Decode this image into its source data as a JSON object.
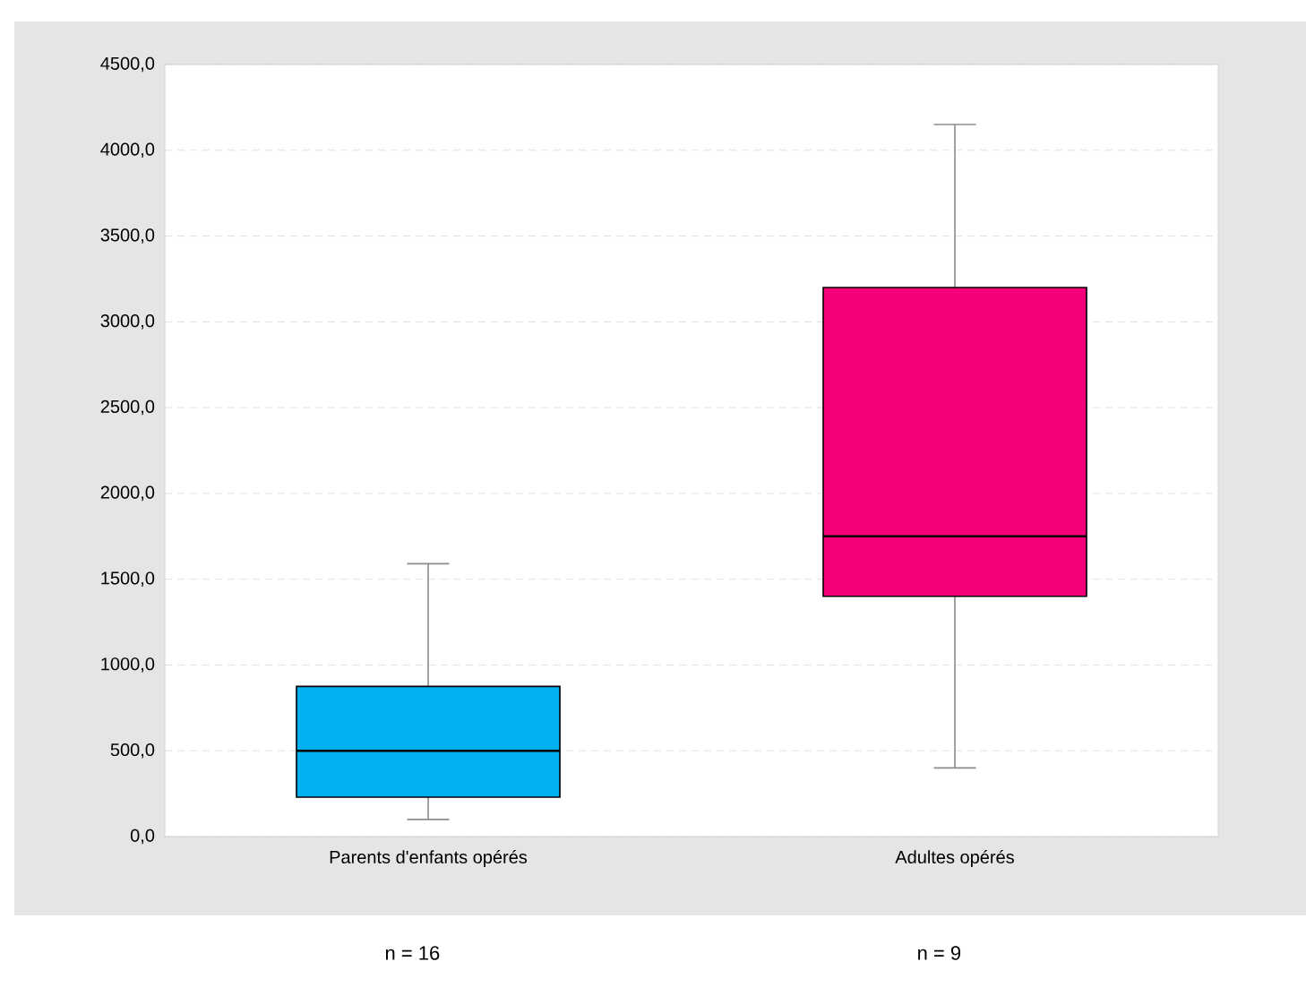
{
  "chart_data": {
    "type": "box",
    "categories": [
      "Parents d'enfants opérés",
      "Adultes opérés"
    ],
    "boxes": [
      {
        "low": 100,
        "q1": 230,
        "median": 500,
        "q3": 875,
        "high": 1590
      },
      {
        "low": 400,
        "q1": 1400,
        "median": 1750,
        "q3": 3200,
        "high": 4150
      }
    ],
    "colors": [
      "#00b0f0",
      "#f5007a"
    ],
    "ylim": [
      0,
      4500
    ],
    "yticks": [
      {
        "value": 0,
        "label": "0,0"
      },
      {
        "value": 500,
        "label": "500,0"
      },
      {
        "value": 1000,
        "label": "1000,0"
      },
      {
        "value": 1500,
        "label": "1500,0"
      },
      {
        "value": 2000,
        "label": "2000,0"
      },
      {
        "value": 2500,
        "label": "2500,0"
      },
      {
        "value": 3000,
        "label": "3000,0"
      },
      {
        "value": 3500,
        "label": "3500,0"
      },
      {
        "value": 4000,
        "label": "4000,0"
      },
      {
        "value": 4500,
        "label": "4500,0"
      }
    ],
    "grid": "y",
    "annotations": [
      "n = 16",
      "n = 9"
    ]
  }
}
